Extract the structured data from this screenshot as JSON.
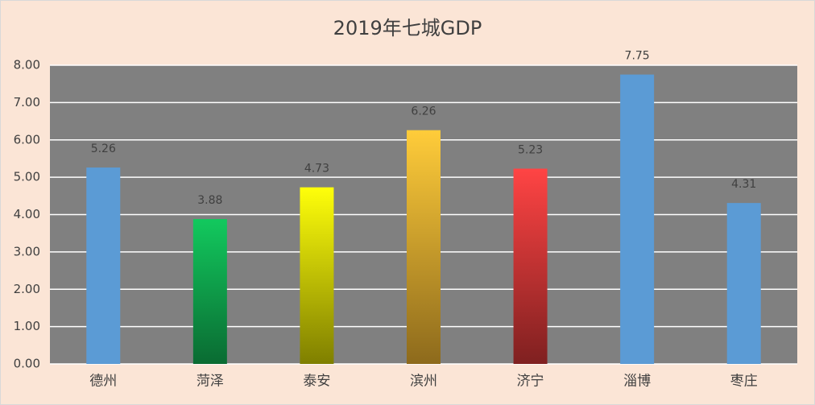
{
  "chart_data": {
    "type": "bar",
    "title": "2019年七城GDP",
    "categories": [
      "德州",
      "菏泽",
      "泰安",
      "滨州",
      "济宁",
      "淄博",
      "枣庄"
    ],
    "values": [
      5.26,
      3.88,
      4.73,
      6.26,
      5.23,
      7.75,
      4.31
    ],
    "colors": [
      "#5b9bd5",
      "#12c95e",
      "#ffff0a",
      "#ffcc3a",
      "#ff4444",
      "#5b9bd5",
      "#5b9bd5"
    ],
    "gradient_to": [
      null,
      "#0a6b32",
      "#7f7f00",
      "#8d6a1c",
      "#7f2020",
      null,
      null
    ],
    "ylim": [
      0,
      8
    ],
    "yticks": [
      {
        "value": 0,
        "label": "0.00"
      },
      {
        "value": 1,
        "label": "1.00"
      },
      {
        "value": 2,
        "label": "2.00"
      },
      {
        "value": 3,
        "label": "3.00"
      },
      {
        "value": 4,
        "label": "4.00"
      },
      {
        "value": 5,
        "label": "5.00"
      },
      {
        "value": 6,
        "label": "6.00"
      },
      {
        "value": 7,
        "label": "7.00"
      },
      {
        "value": 8,
        "label": "8.00"
      }
    ],
    "grid": true
  }
}
